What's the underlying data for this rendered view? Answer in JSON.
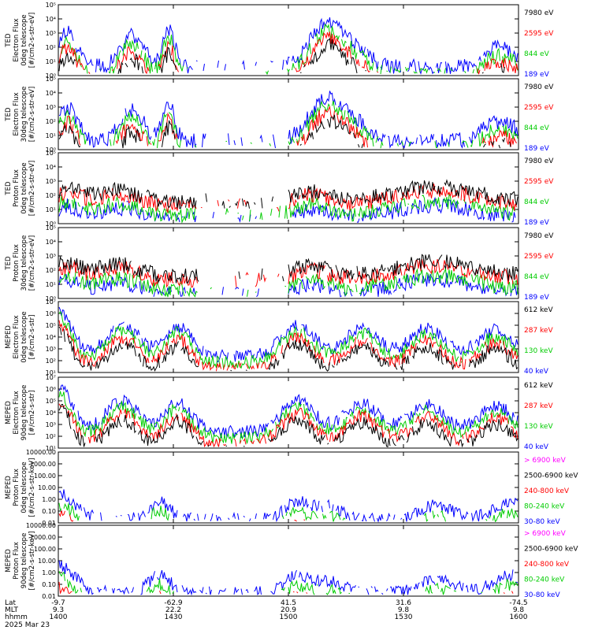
{
  "footer": {
    "row_labels": [
      "Lat",
      "MLT",
      "hhmm",
      "2025 Mar 23"
    ],
    "ticks": [
      {
        "lat": "-9.7",
        "mlt": "9.3",
        "hhmm": "1400"
      },
      {
        "lat": "-62.9",
        "mlt": "22.2",
        "hhmm": "1430"
      },
      {
        "lat": "41.5",
        "mlt": "20.9",
        "hhmm": "1500"
      },
      {
        "lat": "31.6",
        "mlt": "9.8",
        "hhmm": "1530"
      },
      {
        "lat": "-74.5",
        "mlt": "9.8",
        "hhmm": "1600"
      }
    ]
  },
  "colors": {
    "black": "#000000",
    "red": "#ff0000",
    "green": "#00cc00",
    "blue": "#0000ff",
    "magenta": "#ff00ff"
  },
  "chart_data": [
    {
      "type": "line",
      "ylabel": [
        "TED",
        "Electron Flux",
        "0deg telescope",
        "[#/cm2-s-str-eV]"
      ],
      "ylog": true,
      "ylim": [
        1,
        100000
      ],
      "yticks": [
        "10⁰",
        "10¹",
        "10²",
        "10³",
        "10⁴",
        "10⁵"
      ],
      "series": [
        {
          "name": "7980 eV",
          "color": "#000000"
        },
        {
          "name": "2595 eV",
          "color": "#ff0000"
        },
        {
          "name": "844 eV",
          "color": "#00cc00"
        },
        {
          "name": "189 eV",
          "color": "#0000ff"
        }
      ]
    },
    {
      "type": "line",
      "ylabel": [
        "TED",
        "Electron Flux",
        "30deg telescope",
        "[#/cm2-s-str-eV]"
      ],
      "ylog": true,
      "ylim": [
        1,
        100000
      ],
      "yticks": [
        "10⁰",
        "10¹",
        "10²",
        "10³",
        "10⁴",
        "10⁵"
      ],
      "series": [
        {
          "name": "7980 eV",
          "color": "#000000"
        },
        {
          "name": "2595 eV",
          "color": "#ff0000"
        },
        {
          "name": "844 eV",
          "color": "#00cc00"
        },
        {
          "name": "189 eV",
          "color": "#0000ff"
        }
      ]
    },
    {
      "type": "line",
      "ylabel": [
        "TED",
        "Proton Flux",
        "0deg telescope",
        "[#/cm2-s-str-eV]"
      ],
      "ylog": true,
      "ylim": [
        1,
        100000
      ],
      "yticks": [
        "10⁰",
        "10¹",
        "10²",
        "10³",
        "10⁴",
        "10⁵"
      ],
      "series": [
        {
          "name": "7980 eV",
          "color": "#000000"
        },
        {
          "name": "2595 eV",
          "color": "#ff0000"
        },
        {
          "name": "844 eV",
          "color": "#00cc00"
        },
        {
          "name": "189 eV",
          "color": "#0000ff"
        }
      ]
    },
    {
      "type": "line",
      "ylabel": [
        "TED",
        "Proton Flux",
        "30deg telescope",
        "[#/cm2-s-str-eV]"
      ],
      "ylog": true,
      "ylim": [
        1,
        100000
      ],
      "yticks": [
        "10⁰",
        "10¹",
        "10²",
        "10³",
        "10⁴",
        "10⁵"
      ],
      "series": [
        {
          "name": "7980 eV",
          "color": "#000000"
        },
        {
          "name": "2595 eV",
          "color": "#ff0000"
        },
        {
          "name": "844 eV",
          "color": "#00cc00"
        },
        {
          "name": "189 eV",
          "color": "#0000ff"
        }
      ]
    },
    {
      "type": "line",
      "ylabel": [
        "MEPED",
        "Electron Flux",
        "0deg telescope",
        "[#/cm2-s-str]"
      ],
      "ylog": true,
      "ylim": [
        10,
        10000000
      ],
      "yticks": [
        "10¹",
        "10²",
        "10³",
        "10⁴",
        "10⁵",
        "10⁶",
        "10⁷"
      ],
      "series": [
        {
          "name": "612 keV",
          "color": "#000000"
        },
        {
          "name": "287 keV",
          "color": "#ff0000"
        },
        {
          "name": "130 keV",
          "color": "#00cc00"
        },
        {
          "name": "40 keV",
          "color": "#0000ff"
        }
      ]
    },
    {
      "type": "line",
      "ylabel": [
        "MEPED",
        "Electron Flux",
        "90deg telescope",
        "[#/cm2-s-str]"
      ],
      "ylog": true,
      "ylim": [
        10,
        10000000
      ],
      "yticks": [
        "10¹",
        "10²",
        "10³",
        "10⁴",
        "10⁵",
        "10⁶",
        "10⁷"
      ],
      "series": [
        {
          "name": "612 keV",
          "color": "#000000"
        },
        {
          "name": "287 keV",
          "color": "#ff0000"
        },
        {
          "name": "130 keV",
          "color": "#00cc00"
        },
        {
          "name": "40 keV",
          "color": "#0000ff"
        }
      ]
    },
    {
      "type": "line",
      "ylabel": [
        "MEPED",
        "Proton Flux",
        "0deg telescope",
        "[#/cm2-s-str-keV]"
      ],
      "ylog": true,
      "ylim": [
        0.01,
        10000
      ],
      "yticks": [
        "0.01",
        "0.10",
        "1.00",
        "10.00",
        "100.00",
        "1000.00",
        "10000.00"
      ],
      "series": [
        {
          "name": "> 6900 keV",
          "color": "#ff00ff"
        },
        {
          "name": "2500-6900 keV",
          "color": "#000000"
        },
        {
          "name": "240-800 keV",
          "color": "#ff0000"
        },
        {
          "name": "80-240 keV",
          "color": "#00cc00"
        },
        {
          "name": "30-80 keV",
          "color": "#0000ff"
        }
      ]
    },
    {
      "type": "line",
      "ylabel": [
        "MEPED",
        "Proton Flux",
        "90deg telescope",
        "[#/cm2-s-str-keV]"
      ],
      "ylog": true,
      "ylim": [
        0.01,
        10000
      ],
      "yticks": [
        "0.01",
        "0.10",
        "1.00",
        "10.00",
        "100.00",
        "1000.00",
        "10000.00"
      ],
      "series": [
        {
          "name": "> 6900 keV",
          "color": "#ff00ff"
        },
        {
          "name": "2500-6900 keV",
          "color": "#000000"
        },
        {
          "name": "240-800 keV",
          "color": "#ff0000"
        },
        {
          "name": "80-240 keV",
          "color": "#00cc00"
        },
        {
          "name": "30-80 keV",
          "color": "#0000ff"
        }
      ]
    }
  ]
}
